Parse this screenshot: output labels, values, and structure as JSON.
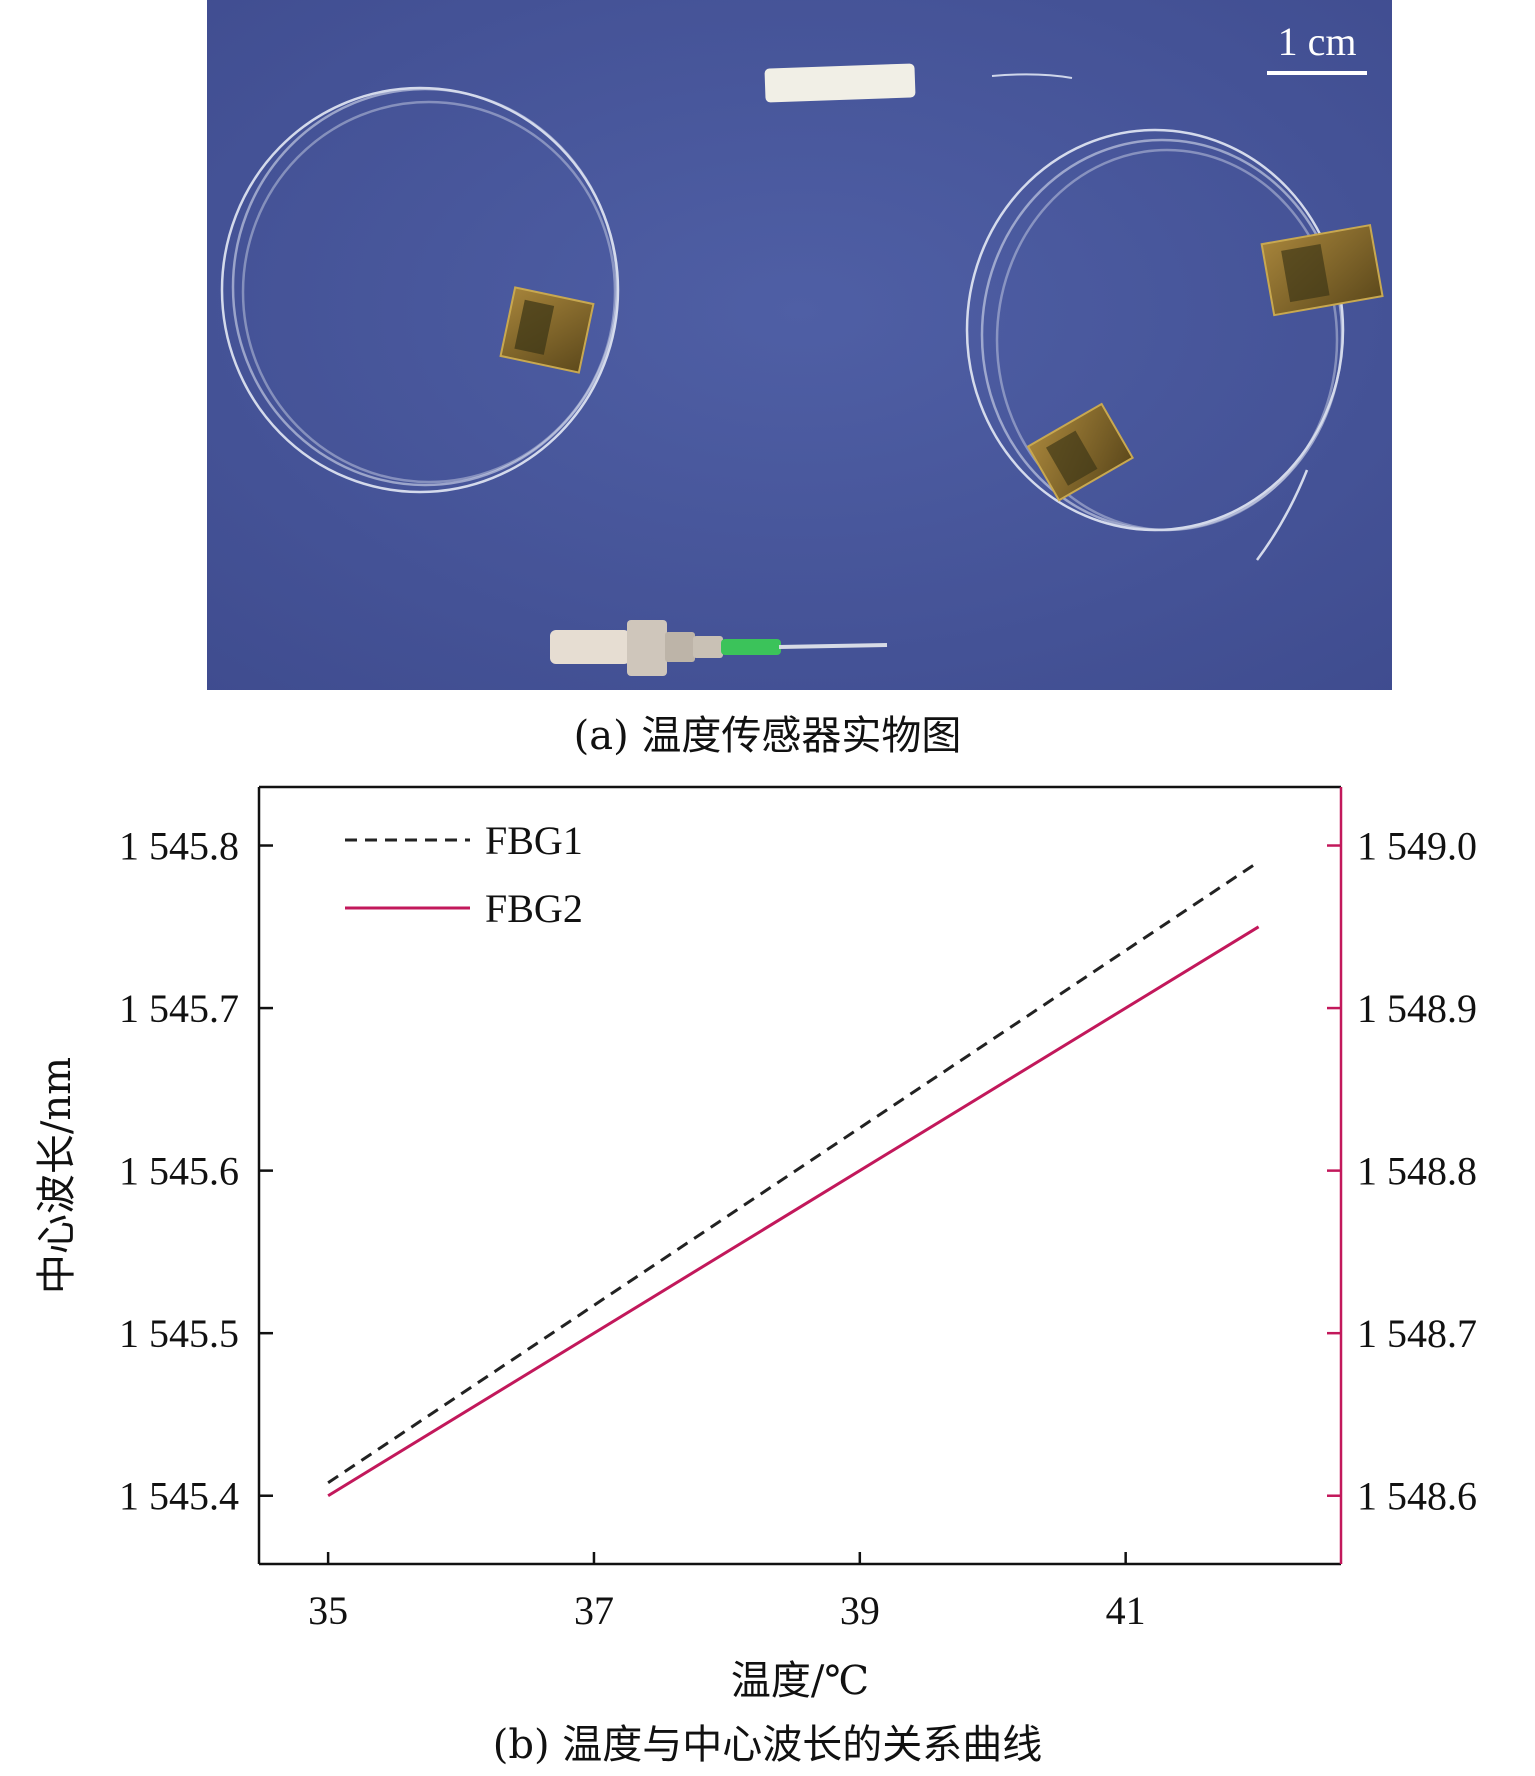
{
  "photo": {
    "scale_label": "1 cm",
    "caption": "(a) 温度传感器实物图",
    "colors": {
      "background": "#4a5a9e",
      "fiber": "#e4e9f5",
      "tape": "#8a6a2a",
      "connector": "#d8d0c8",
      "connector_accent": "#3bc35a"
    }
  },
  "chart_caption": "(b) 温度与中心波长的关系曲线",
  "chart_data": {
    "type": "line",
    "xlabel": "温度/℃",
    "ylabel": "中心波长/nm",
    "x_ticks": [
      35,
      37,
      39,
      41
    ],
    "x_tick_labels": [
      "35",
      "37",
      "39",
      "41"
    ],
    "xlim": [
      34.48,
      42.62
    ],
    "left_axis": {
      "ylim": [
        1545.358,
        1545.836
      ],
      "ticks": [
        1545.4,
        1545.5,
        1545.6,
        1545.7,
        1545.8
      ],
      "tick_labels": [
        "1 545.4",
        "1 545.5",
        "1 545.6",
        "1 545.7",
        "1 545.8"
      ],
      "color": "#111111"
    },
    "right_axis": {
      "ylim": [
        1548.558,
        1549.036
      ],
      "ticks": [
        1548.6,
        1548.7,
        1548.8,
        1548.9,
        1549.0
      ],
      "tick_labels": [
        "1 548.6",
        "1 548.7",
        "1 548.8",
        "1 548.9",
        "1 549.0"
      ],
      "color": "#c2185b"
    },
    "series": [
      {
        "name": "FBG1",
        "axis": "left",
        "style": "dashed",
        "color": "#222222",
        "x": [
          35,
          42
        ],
        "y": [
          1545.408,
          1545.79
        ]
      },
      {
        "name": "FBG2",
        "axis": "right",
        "style": "solid",
        "color": "#c2185b",
        "x": [
          35,
          42
        ],
        "y": [
          1548.6,
          1548.95
        ]
      }
    ],
    "legend": "top-left",
    "grid": false
  }
}
